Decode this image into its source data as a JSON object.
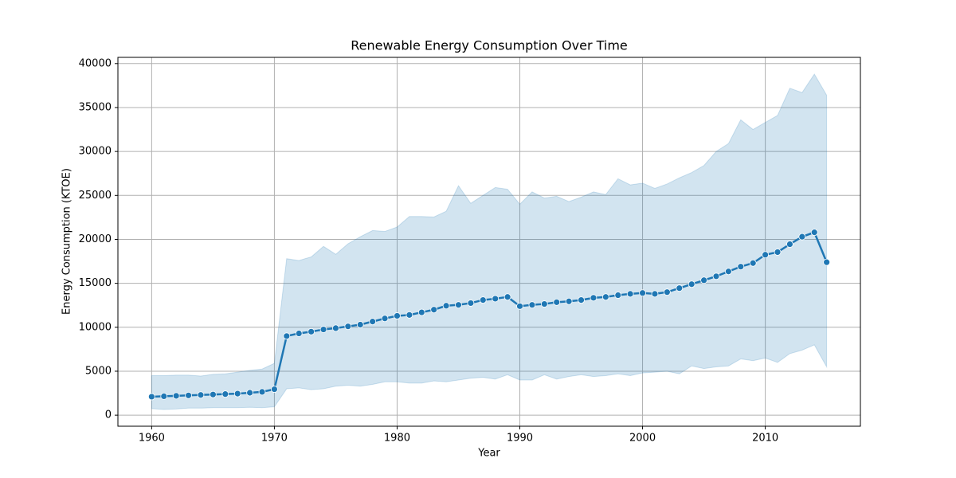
{
  "chart_data": {
    "type": "line",
    "title": "Renewable Energy Consumption Over Time",
    "xlabel": "Year",
    "ylabel": "Energy Consumption (KTOE)",
    "x": [
      1960,
      1961,
      1962,
      1963,
      1964,
      1965,
      1966,
      1967,
      1968,
      1969,
      1970,
      1971,
      1972,
      1973,
      1974,
      1975,
      1976,
      1977,
      1978,
      1979,
      1980,
      1981,
      1982,
      1983,
      1984,
      1985,
      1986,
      1987,
      1988,
      1989,
      1990,
      1991,
      1992,
      1993,
      1994,
      1995,
      1996,
      1997,
      1998,
      1999,
      2000,
      2001,
      2002,
      2003,
      2004,
      2005,
      2006,
      2007,
      2008,
      2009,
      2010,
      2011,
      2012,
      2013,
      2014,
      2015
    ],
    "series": [
      {
        "color": "#1f77b4",
        "values": [
          2100,
          2150,
          2200,
          2250,
          2300,
          2350,
          2400,
          2450,
          2550,
          2650,
          2950,
          9000,
          9300,
          9500,
          9750,
          9900,
          10100,
          10300,
          10650,
          11000,
          11300,
          11400,
          11700,
          12000,
          12450,
          12550,
          12750,
          13100,
          13250,
          13450,
          12400,
          12550,
          12650,
          12850,
          12950,
          13100,
          13350,
          13450,
          13650,
          13800,
          13900,
          13800,
          14000,
          14450,
          14900,
          15350,
          15800,
          16350,
          16900,
          17300,
          18250,
          18550,
          19450,
          20300,
          20800,
          17400
        ],
        "upper": [
          4500,
          4500,
          4550,
          4550,
          4450,
          4650,
          4700,
          4900,
          5100,
          5250,
          5900,
          17800,
          17600,
          18000,
          19200,
          18300,
          19500,
          20300,
          21000,
          20900,
          21400,
          22600,
          22600,
          22550,
          23200,
          26100,
          24100,
          25000,
          25900,
          25700,
          24000,
          25400,
          24700,
          24900,
          24300,
          24800,
          25400,
          25100,
          26900,
          26200,
          26400,
          25800,
          26300,
          27000,
          27600,
          28400,
          30000,
          30900,
          33600,
          32500,
          33300,
          34100,
          37200,
          36700,
          38800,
          36400
        ],
        "lower": [
          750,
          650,
          700,
          800,
          800,
          850,
          850,
          850,
          900,
          850,
          950,
          3000,
          3100,
          2900,
          3000,
          3300,
          3400,
          3300,
          3500,
          3800,
          3800,
          3650,
          3650,
          3900,
          3800,
          4000,
          4200,
          4300,
          4100,
          4600,
          4000,
          4000,
          4600,
          4100,
          4400,
          4600,
          4400,
          4500,
          4700,
          4500,
          4800,
          4900,
          5000,
          4700,
          5600,
          5300,
          5500,
          5600,
          6400,
          6200,
          6500,
          6000,
          7000,
          7400,
          8000,
          5500
        ]
      }
    ],
    "xlim": [
      1957.25,
      2017.75
    ],
    "xticks": [
      1960,
      1970,
      1980,
      1990,
      2000,
      2010
    ],
    "ylim": [
      -1257,
      40707
    ],
    "yticks": [
      0,
      5000,
      10000,
      15000,
      20000,
      25000,
      30000,
      35000,
      40000
    ],
    "grid": true
  }
}
